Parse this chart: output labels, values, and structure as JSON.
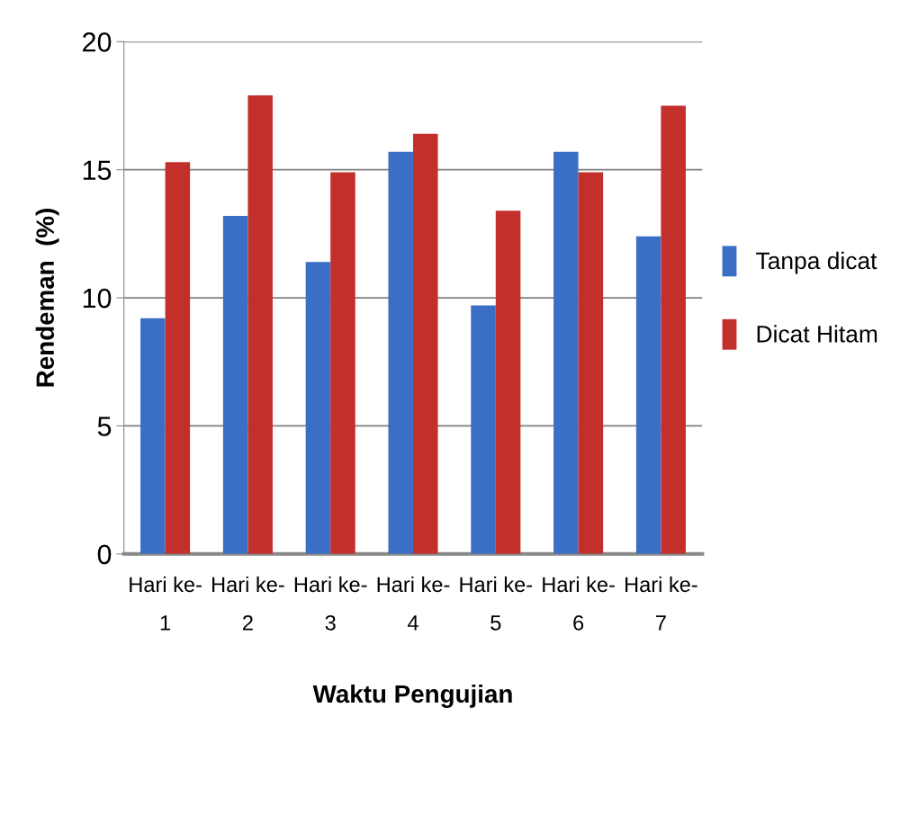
{
  "chart_data": {
    "type": "bar",
    "xlabel": "Waktu Pengujian",
    "ylabel": "Rendeman  (%)",
    "categories": [
      "Hari ke-\n1",
      "Hari ke-\n2",
      "Hari ke-\n3",
      "Hari ke-\n4",
      "Hari ke-\n5",
      "Hari ke-\n6",
      "Hari ke-\n7"
    ],
    "series": [
      {
        "name": "Tanpa dicat",
        "color": "#3b6fc6",
        "values": [
          9.2,
          13.2,
          11.4,
          15.7,
          9.7,
          15.7,
          12.4
        ]
      },
      {
        "name": "Dicat Hitam",
        "color": "#c3302c",
        "values": [
          15.3,
          17.9,
          14.9,
          16.4,
          13.4,
          14.9,
          17.5
        ]
      }
    ],
    "ylim": [
      0,
      20
    ],
    "yticks": [
      0,
      5,
      10,
      15,
      20
    ],
    "grid": "y",
    "legend": "right"
  }
}
